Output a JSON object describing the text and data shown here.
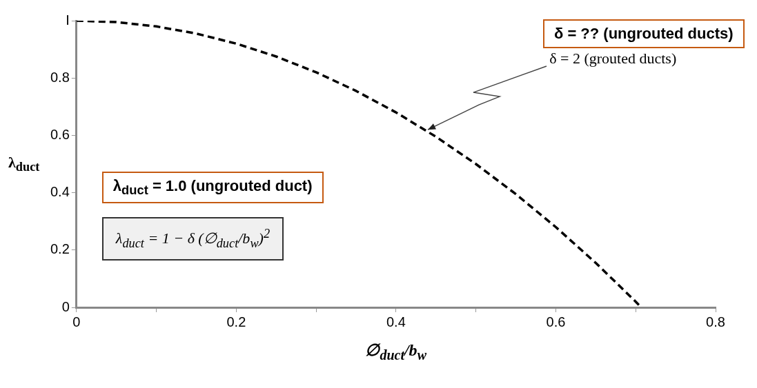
{
  "chart_data": {
    "type": "line",
    "xlabel": "∅$_{duct}$/b$_{w}$",
    "ylabel": "λ$_{duct}$",
    "x": [
      0,
      0.05,
      0.1,
      0.15,
      0.2,
      0.25,
      0.3,
      0.35,
      0.4,
      0.45,
      0.5,
      0.55,
      0.6,
      0.65,
      0.7,
      0.707
    ],
    "series": [
      {
        "color": "#000000",
        "values": [
          1,
          0.995,
          0.98,
          0.955,
          0.92,
          0.875,
          0.82,
          0.755,
          0.68,
          0.595,
          0.5,
          0.395,
          0.28,
          0.155,
          0.02,
          0
        ]
      }
    ],
    "xlim": [
      0,
      0.8
    ],
    "ylim": [
      0,
      1
    ],
    "xticks": [
      0,
      {
        "value": 0.1,
        "label": null
      },
      0.2,
      {
        "value": 0.3,
        "label": null
      },
      0.4,
      {
        "value": 0.5,
        "label": null
      },
      0.6,
      {
        "value": 0.7,
        "label": null
      },
      0.8
    ],
    "yticks": [
      0,
      0.2,
      0.4,
      0.6,
      0.8,
      {
        "value": 1,
        "label": "I"
      }
    ],
    "annotations": [
      "δ = ?? (ungrouted ducts)",
      {
        "text": "δ = 2 (grouted ducts)",
        "x": 0.44,
        "y": 0.62
      },
      "λ$_{duct}$ = 1.0 (ungrouted duct)",
      "λ$_{duct}$ = 1 − δ (∅$_{duct}$/b$_{w}$)$^{2}$"
    ],
    "marker": "none",
    "line_style": "dashed",
    "legend": false
  }
}
